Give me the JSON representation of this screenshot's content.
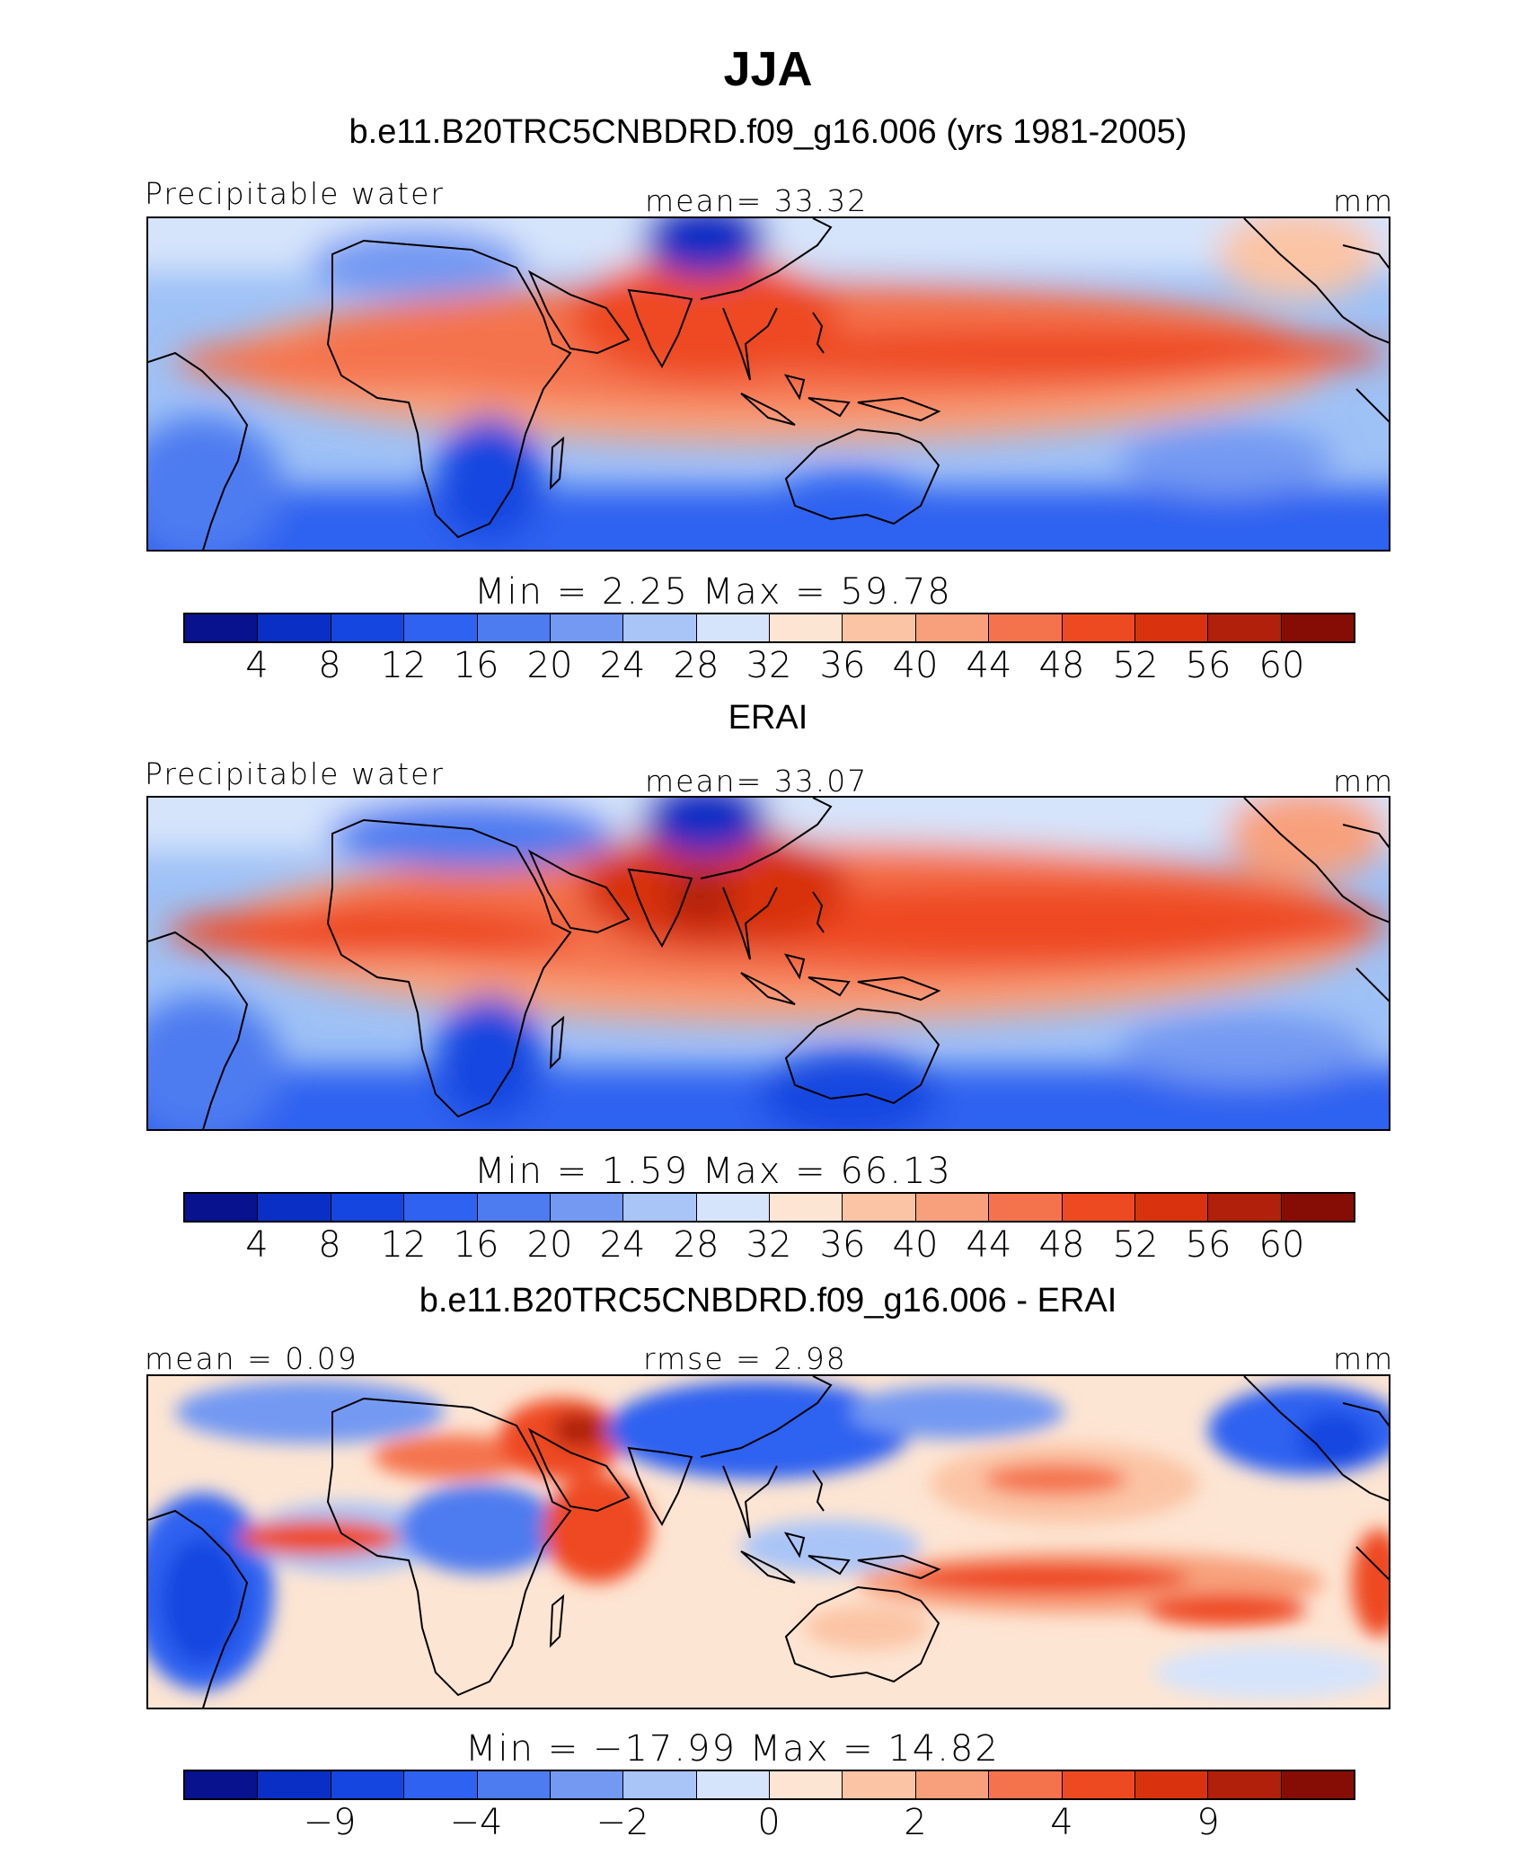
{
  "figure": {
    "title": "JJA",
    "units": "mm",
    "palette": [
      "#08128f",
      "#0a2fc4",
      "#1646e0",
      "#2f62f0",
      "#4d7cf0",
      "#7399f2",
      "#a9c4f7",
      "#d6e4fb",
      "#fde5d3",
      "#fbc4a5",
      "#f8a07c",
      "#f4734d",
      "#ee4a22",
      "#d8330e",
      "#b0200a",
      "#860d05"
    ]
  },
  "panels": [
    {
      "title": "b.e11.B20TRC5CNBDRD.f09_g16.006 (yrs 1981-2005)",
      "left_label": "Precipitable water",
      "center_label": "mean=   33.32",
      "units": "mm",
      "minmax": "Min  =     2.25  Max  =    59.78",
      "ticks": [
        "4",
        "8",
        "12",
        "16",
        "20",
        "24",
        "28",
        "32",
        "36",
        "40",
        "44",
        "48",
        "52",
        "56",
        "60"
      ]
    },
    {
      "title": "ERAI",
      "left_label": "Precipitable water",
      "center_label": "mean=   33.07",
      "units": "mm",
      "minmax": "Min  =     1.59  Max  =    66.13",
      "ticks": [
        "4",
        "8",
        "12",
        "16",
        "20",
        "24",
        "28",
        "32",
        "36",
        "40",
        "44",
        "48",
        "52",
        "56",
        "60"
      ]
    },
    {
      "title": "b.e11.B20TRC5CNBDRD.f09_g16.006 - ERAI",
      "left_label": "mean =    0.09",
      "center_label": "rmse =     2.98",
      "units": "mm",
      "minmax": "Min  =  −17.99  Max  =    14.82",
      "ticks": [
        "−9",
        "−4",
        "−2",
        "0",
        "2",
        "4",
        "9"
      ]
    }
  ]
}
